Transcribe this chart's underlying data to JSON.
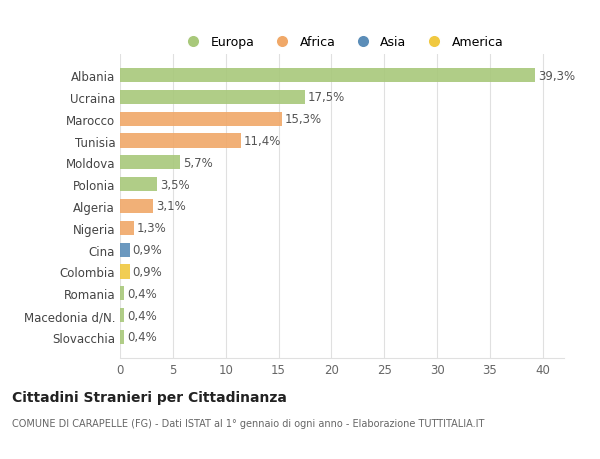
{
  "countries": [
    "Albania",
    "Ucraina",
    "Marocco",
    "Tunisia",
    "Moldova",
    "Polonia",
    "Algeria",
    "Nigeria",
    "Cina",
    "Colombia",
    "Romania",
    "Macedonia d/N.",
    "Slovacchia"
  ],
  "values": [
    39.3,
    17.5,
    15.3,
    11.4,
    5.7,
    3.5,
    3.1,
    1.3,
    0.9,
    0.9,
    0.4,
    0.4,
    0.4
  ],
  "labels": [
    "39,3%",
    "17,5%",
    "15,3%",
    "11,4%",
    "5,7%",
    "3,5%",
    "3,1%",
    "1,3%",
    "0,9%",
    "0,9%",
    "0,4%",
    "0,4%",
    "0,4%"
  ],
  "continents": [
    "Europa",
    "Europa",
    "Africa",
    "Africa",
    "Europa",
    "Europa",
    "Africa",
    "Africa",
    "Asia",
    "America",
    "Europa",
    "Europa",
    "Europa"
  ],
  "continent_colors": {
    "Europa": "#a8c87a",
    "Africa": "#f0a868",
    "Asia": "#5b8db8",
    "America": "#f0c840"
  },
  "legend_order": [
    "Europa",
    "Africa",
    "Asia",
    "America"
  ],
  "title": "Cittadini Stranieri per Cittadinanza",
  "subtitle": "COMUNE DI CARAPELLE (FG) - Dati ISTAT al 1° gennaio di ogni anno - Elaborazione TUTTITALIA.IT",
  "xlim": [
    0,
    42
  ],
  "xticks": [
    0,
    5,
    10,
    15,
    20,
    25,
    30,
    35,
    40
  ],
  "background_color": "#ffffff",
  "grid_color": "#e0e0e0"
}
